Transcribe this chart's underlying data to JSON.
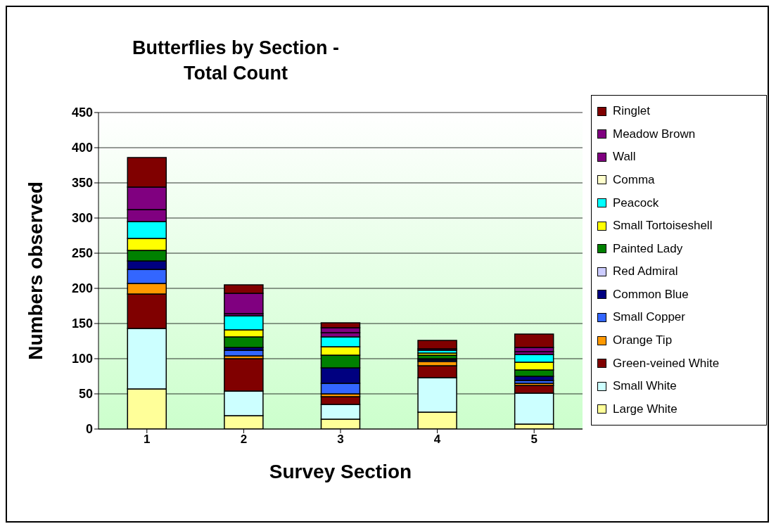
{
  "chart_data": {
    "type": "bar",
    "title": "Butterflies by Section - Total Count",
    "xlabel": "Survey Section",
    "ylabel": "Numbers observed",
    "categories": [
      "1",
      "2",
      "3",
      "4",
      "5"
    ],
    "stacked": true,
    "ylim": [
      0,
      450
    ],
    "yticks": [
      0,
      50,
      100,
      150,
      200,
      250,
      300,
      350,
      400,
      450
    ],
    "grid": "y",
    "legend": "right",
    "series": [
      {
        "name": "Large White",
        "color": "#ffff99",
        "values": [
          57,
          19,
          14,
          24,
          7
        ]
      },
      {
        "name": "Small White",
        "color": "#ccffff",
        "values": [
          86,
          35,
          21,
          49,
          44
        ]
      },
      {
        "name": "Green-veined White",
        "color": "#800000",
        "values": [
          49,
          46,
          11,
          17,
          11
        ]
      },
      {
        "name": "Orange Tip",
        "color": "#ff9900",
        "values": [
          15,
          4,
          4,
          6,
          3
        ]
      },
      {
        "name": "Small Copper",
        "color": "#3366ff",
        "values": [
          20,
          8,
          15,
          2,
          4
        ]
      },
      {
        "name": "Common Blue",
        "color": "#000080",
        "values": [
          12,
          4,
          22,
          2,
          6
        ]
      },
      {
        "name": "Red Admiral",
        "color": "#ccccff",
        "values": [
          0,
          0,
          0,
          0,
          0
        ]
      },
      {
        "name": "Painted Lady",
        "color": "#008000",
        "values": [
          15,
          15,
          18,
          5,
          9
        ]
      },
      {
        "name": "Small Tortoiseshell",
        "color": "#ffff00",
        "values": [
          17,
          10,
          12,
          3,
          11
        ]
      },
      {
        "name": "Peacock",
        "color": "#00ffff",
        "values": [
          24,
          20,
          14,
          4,
          11
        ]
      },
      {
        "name": "Comma",
        "color": "#ffffcc",
        "values": [
          0,
          0,
          0,
          0,
          0
        ]
      },
      {
        "name": "Wall",
        "color": "#800080",
        "values": [
          17,
          3,
          6,
          null,
          4
        ]
      },
      {
        "name": "Meadow Brown",
        "color": "#800080",
        "values": [
          32,
          29,
          7,
          2,
          6
        ]
      },
      {
        "name": "Ringlet",
        "color": "#800000",
        "values": [
          42,
          12,
          7,
          12,
          19
        ]
      }
    ]
  }
}
